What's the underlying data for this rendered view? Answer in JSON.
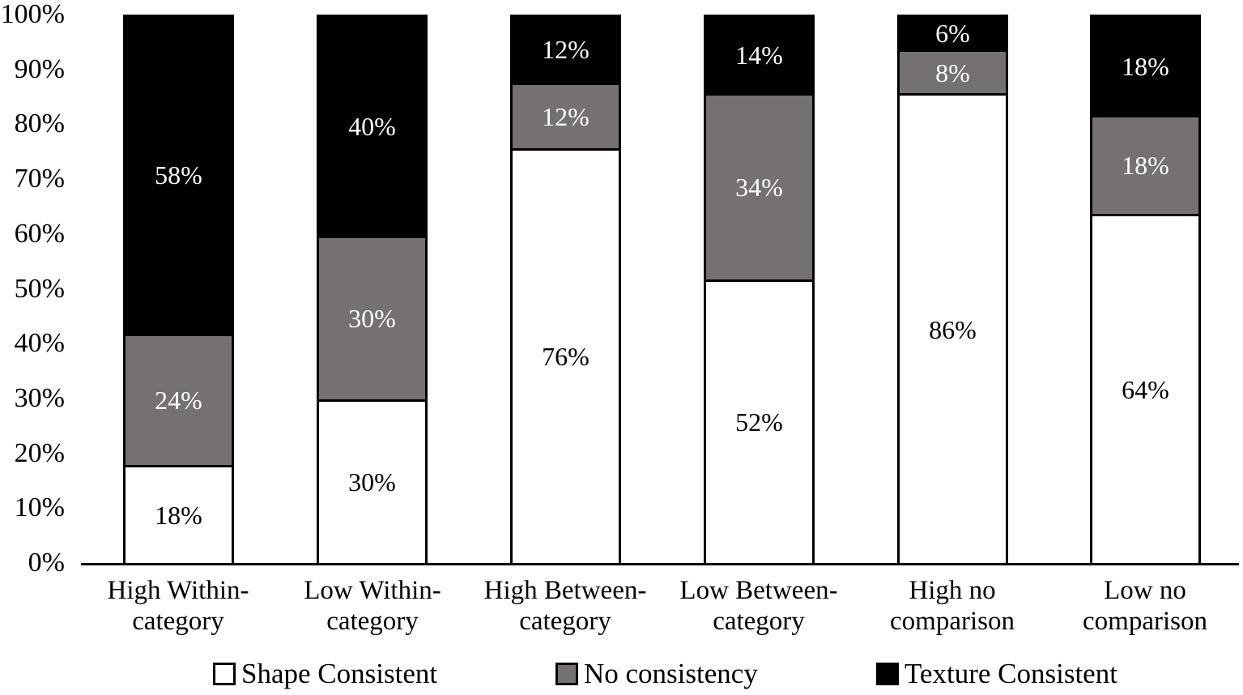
{
  "chart_data": {
    "type": "bar",
    "subtype": "stacked-100-percent-column",
    "title": "",
    "xlabel": "",
    "ylabel": "",
    "unit": "%",
    "grid": false,
    "background_color": "#ffffff",
    "axis_color": "#000000",
    "bar_outline_color": "#000000",
    "categories": [
      "High Within-category",
      "Low Within-category",
      "High Between-category",
      "Low Between-category",
      "High no comparison",
      "Low no comparison"
    ],
    "category_label_lines": [
      [
        "High Within-",
        "category"
      ],
      [
        "Low Within-",
        "category"
      ],
      [
        "High Between-",
        "category"
      ],
      [
        "Low Between-",
        "category"
      ],
      [
        "High no",
        "comparison"
      ],
      [
        "Low no",
        "comparison"
      ]
    ],
    "series": [
      {
        "name": "Shape Consistent",
        "color": "#ffffff",
        "label_color": "#000000",
        "values": [
          18,
          30,
          76,
          52,
          86,
          64
        ]
      },
      {
        "name": "No consistency",
        "color": "#767171",
        "label_color": "#ffffff",
        "values": [
          24,
          30,
          12,
          34,
          8,
          18
        ]
      },
      {
        "name": "Texture Consistent",
        "color": "#000000",
        "label_color": "#ffffff",
        "values": [
          58,
          40,
          12,
          14,
          6,
          18
        ]
      }
    ],
    "stack_order": "bottom-to-top",
    "data_labels": "value-with-percent-sign-centered-in-segment",
    "y_axis": {
      "min": 0,
      "max": 100,
      "tick_labels": [
        "0%",
        "10%",
        "20%",
        "30%",
        "40%",
        "50%",
        "60%",
        "70%",
        "80%",
        "90%",
        "100%"
      ]
    },
    "legend": {
      "position": "bottom",
      "entries": [
        "Shape Consistent",
        "No consistency",
        "Texture Consistent"
      ]
    }
  }
}
